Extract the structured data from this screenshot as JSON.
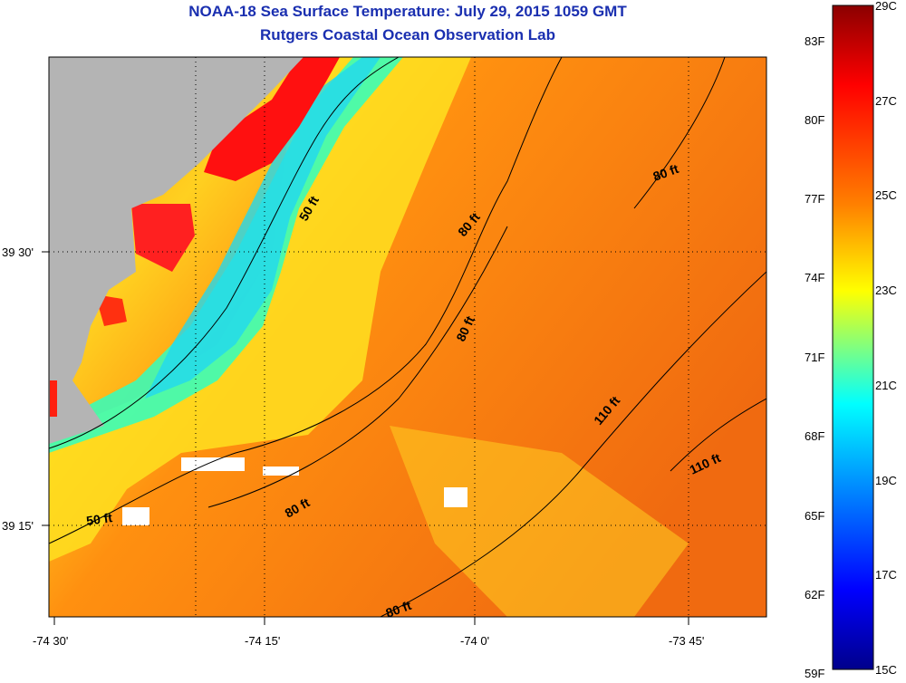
{
  "header": {
    "title": "NOAA-18 Sea Surface Temperature:  July 29, 2015 1059 GMT",
    "subtitle": "Rutgers Coastal Ocean Observation Lab"
  },
  "map": {
    "lat_labels": [
      "39 30'",
      "39 15'"
    ],
    "lon_labels": [
      "-74 30'",
      "-74 15'",
      "-74 0'",
      "-73 45'"
    ],
    "contour_labels": [
      "50 ft",
      "80 ft",
      "80 ft",
      "80 ft",
      "50 ft",
      "80 ft",
      "80 ft",
      "110 ft",
      "110 ft"
    ]
  },
  "colorbar": {
    "f_labels": [
      "83F",
      "80F",
      "77F",
      "74F",
      "71F",
      "68F",
      "65F",
      "62F",
      "59F"
    ],
    "c_labels": [
      "29C",
      "27C",
      "25C",
      "23C",
      "21C",
      "19C",
      "17C",
      "15C"
    ],
    "colors": [
      "#8b0000",
      "#ff0000",
      "#ff8000",
      "#ffff00",
      "#00ffff",
      "#0080ff",
      "#0000ff",
      "#00008b"
    ]
  }
}
